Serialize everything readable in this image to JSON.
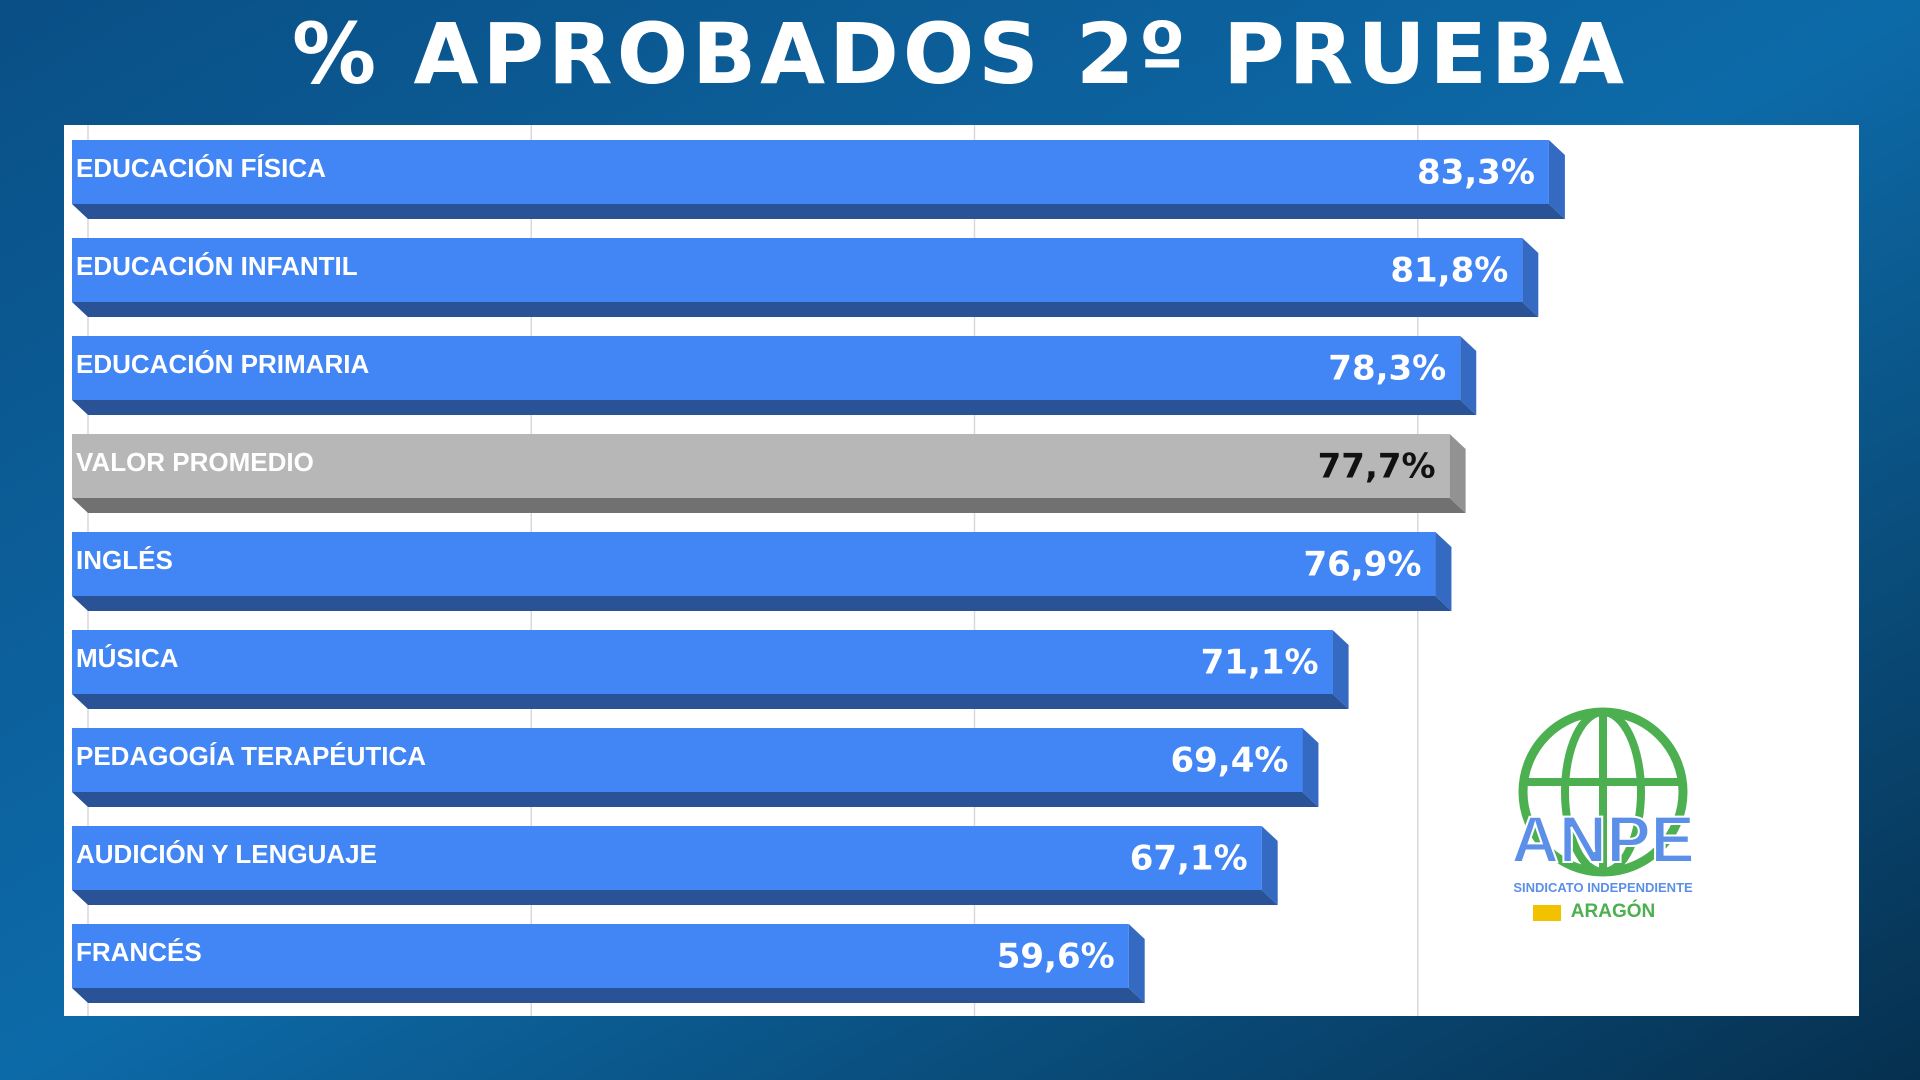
{
  "chart_data": {
    "type": "bar",
    "orientation": "horizontal",
    "title": "% APROBADOS 2º PRUEBA",
    "categories": [
      "EDUCACIÓN FÍSICA",
      "EDUCACIÓN INFANTIL",
      "EDUCACIÓN PRIMARIA",
      "VALOR PROMEDIO",
      "INGLÉS",
      "MÚSICA",
      "PEDAGOGÍA TERAPÉUTICA",
      "AUDICIÓN Y LENGUAJE",
      "FRANCÉS"
    ],
    "values": [
      83.3,
      81.8,
      78.3,
      77.7,
      76.9,
      71.1,
      69.4,
      67.1,
      59.6
    ],
    "value_labels": [
      "83,3%",
      "81,8%",
      "78,3%",
      "77,7%",
      "76,9%",
      "71,1%",
      "69,4%",
      "67,1%",
      "59,6%"
    ],
    "colors": [
      "#4285f4",
      "#4285f4",
      "#4285f4",
      "#b7b7b7",
      "#4285f4",
      "#4285f4",
      "#4285f4",
      "#4285f4",
      "#4285f4"
    ],
    "xlim": [
      0,
      100
    ],
    "xticks": [
      0,
      25,
      50,
      75,
      100
    ],
    "grid": true
  },
  "logo": {
    "name": "ANPE",
    "subtitle": "SINDICATO INDEPENDIENTE",
    "region": "ARAGÓN"
  }
}
